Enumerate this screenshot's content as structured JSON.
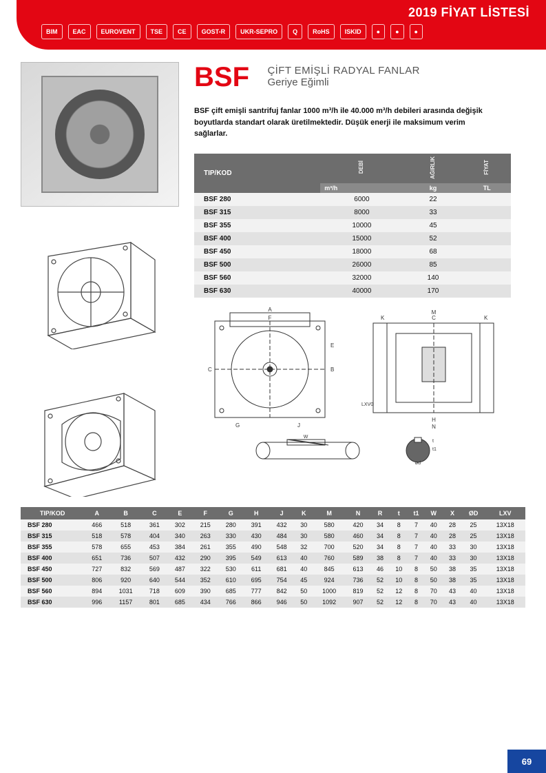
{
  "header": {
    "title": "2019 FİYAT LİSTESİ",
    "certs": [
      "BIM",
      "EAC",
      "EUROVENT",
      "TSE",
      "CE",
      "GOST-R",
      "UKR-SEPRO",
      "Q",
      "RoHS",
      "ISKID",
      "●",
      "●",
      "●"
    ]
  },
  "product": {
    "code": "BSF",
    "title": "ÇİFT EMİŞLİ RADYAL FANLAR",
    "subtitle": "Geriye Eğimli",
    "description": "BSF çift emişli santrifuj fanlar 1000 m³/h ile 40.000 m³/h debileri arasında değişik boyutlarda standart olarak üretilmektedir. Düşük enerji ile maksimum verim sağlarlar."
  },
  "spec_table": {
    "headers": {
      "tip": "TIP/KOD",
      "debi": "DEBİ",
      "agirlik": "AĞIRLIK",
      "fiyat": "FİYAT"
    },
    "units": {
      "debi": "m³/h",
      "agirlik": "kg",
      "fiyat": "TL"
    },
    "rows": [
      {
        "tip": "BSF 280",
        "debi": "6000",
        "agirlik": "22",
        "fiyat": ""
      },
      {
        "tip": "BSF 315",
        "debi": "8000",
        "agirlik": "33",
        "fiyat": ""
      },
      {
        "tip": "BSF 355",
        "debi": "10000",
        "agirlik": "45",
        "fiyat": ""
      },
      {
        "tip": "BSF 400",
        "debi": "15000",
        "agirlik": "52",
        "fiyat": ""
      },
      {
        "tip": "BSF 450",
        "debi": "18000",
        "agirlik": "68",
        "fiyat": ""
      },
      {
        "tip": "BSF 500",
        "debi": "26000",
        "agirlik": "85",
        "fiyat": ""
      },
      {
        "tip": "BSF 560",
        "debi": "32000",
        "agirlik": "140",
        "fiyat": ""
      },
      {
        "tip": "BSF 630",
        "debi": "40000",
        "agirlik": "170",
        "fiyat": ""
      }
    ]
  },
  "dim_table": {
    "headers": [
      "TIP/KOD",
      "A",
      "B",
      "C",
      "E",
      "F",
      "G",
      "H",
      "J",
      "K",
      "M",
      "N",
      "R",
      "t",
      "t1",
      "W",
      "X",
      "ØD",
      "LXV"
    ],
    "rows": [
      [
        "BSF 280",
        "466",
        "518",
        "361",
        "302",
        "215",
        "280",
        "391",
        "432",
        "30",
        "580",
        "420",
        "34",
        "8",
        "7",
        "40",
        "28",
        "25",
        "13X18"
      ],
      [
        "BSF 315",
        "518",
        "578",
        "404",
        "340",
        "263",
        "330",
        "430",
        "484",
        "30",
        "580",
        "460",
        "34",
        "8",
        "7",
        "40",
        "28",
        "25",
        "13X18"
      ],
      [
        "BSF 355",
        "578",
        "655",
        "453",
        "384",
        "261",
        "355",
        "490",
        "548",
        "32",
        "700",
        "520",
        "34",
        "8",
        "7",
        "40",
        "33",
        "30",
        "13X18"
      ],
      [
        "BSF 400",
        "651",
        "736",
        "507",
        "432",
        "290",
        "395",
        "549",
        "613",
        "40",
        "760",
        "589",
        "38",
        "8",
        "7",
        "40",
        "33",
        "30",
        "13X18"
      ],
      [
        "BSF 450",
        "727",
        "832",
        "569",
        "487",
        "322",
        "530",
        "611",
        "681",
        "40",
        "845",
        "613",
        "46",
        "10",
        "8",
        "50",
        "38",
        "35",
        "13X18"
      ],
      [
        "BSF 500",
        "806",
        "920",
        "640",
        "544",
        "352",
        "610",
        "695",
        "754",
        "45",
        "924",
        "736",
        "52",
        "10",
        "8",
        "50",
        "38",
        "35",
        "13X18"
      ],
      [
        "BSF 560",
        "894",
        "1031",
        "718",
        "609",
        "390",
        "685",
        "777",
        "842",
        "50",
        "1000",
        "819",
        "52",
        "12",
        "8",
        "70",
        "43",
        "40",
        "13X18"
      ],
      [
        "BSF 630",
        "996",
        "1157",
        "801",
        "685",
        "434",
        "766",
        "866",
        "946",
        "50",
        "1092",
        "907",
        "52",
        "12",
        "8",
        "70",
        "43",
        "40",
        "13X18"
      ]
    ]
  },
  "page_number": "69",
  "colors": {
    "brand_red": "#e30613",
    "brand_blue": "#1646a0",
    "table_header": "#6d6d6d",
    "table_header2": "#8a8a8a",
    "row_odd": "#f2f2f2",
    "row_even": "#e2e2e2"
  }
}
